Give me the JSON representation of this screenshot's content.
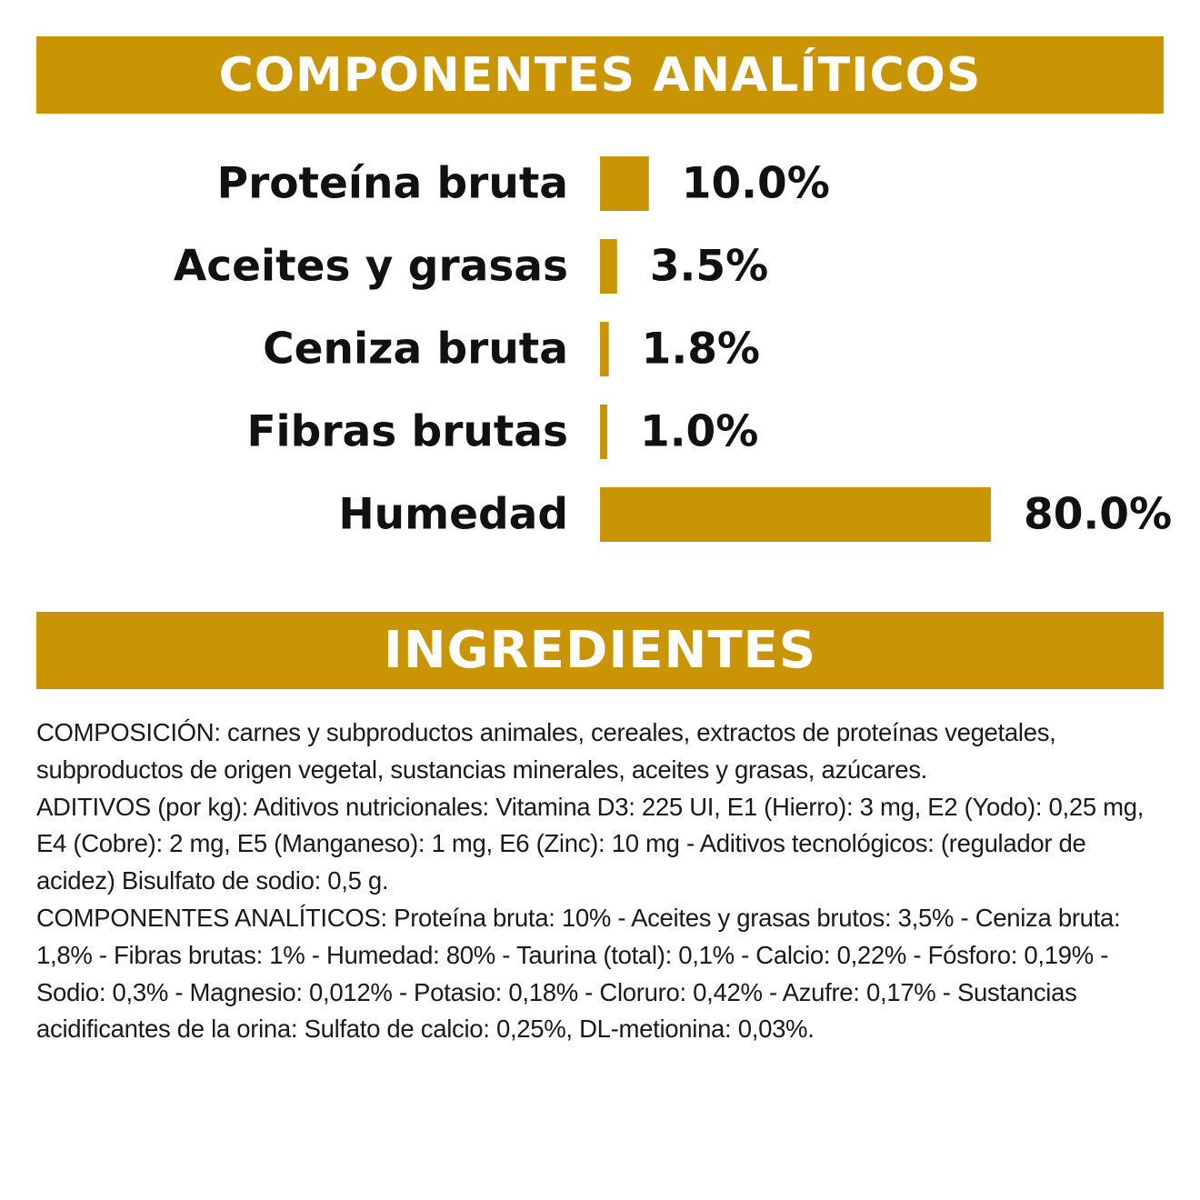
{
  "colors": {
    "accent": "#c99504",
    "text": "#111111",
    "background": "#ffffff"
  },
  "sections": {
    "analytics_title": "COMPONENTES ANALÍTICOS",
    "ingredients_title": "INGREDIENTES"
  },
  "chart_data": {
    "type": "bar",
    "orientation": "horizontal",
    "categories": [
      "Proteína bruta",
      "Aceites y grasas",
      "Ceniza bruta",
      "Fibras brutas",
      "Humedad"
    ],
    "values": [
      10.0,
      3.5,
      1.8,
      1.0,
      80.0
    ],
    "value_labels": [
      "10.0%",
      "3.5%",
      "1.8%",
      "1.0%",
      "80.0%"
    ],
    "unit": "%",
    "grid": false,
    "xlim": [
      0,
      80
    ]
  },
  "ingredients": {
    "paragraphs": [
      "COMPOSICIÓN: carnes y subproductos animales, cereales, extractos de proteínas vegetales, subproductos de origen vegetal, sustancias minerales, aceites y grasas, azúcares.",
      "ADITIVOS (por kg): Aditivos nutricionales: Vitamina D3: 225 UI, E1 (Hierro): 3 mg, E2 (Yodo): 0,25 mg, E4 (Cobre): 2 mg, E5 (Manganeso): 1 mg, E6 (Zinc): 10 mg - Aditivos tecnológicos: (regulador de acidez) Bisulfato de sodio: 0,5 g.",
      "COMPONENTES ANALÍTICOS: Proteína bruta: 10% - Aceites y grasas brutos: 3,5% - Ceniza bruta: 1,8% - Fibras brutas: 1% - Humedad: 80% - Taurina (total): 0,1% - Calcio: 0,22% - Fósforo: 0,19% - Sodio: 0,3% - Magnesio: 0,012% - Potasio: 0,18% - Cloruro: 0,42% - Azufre: 0,17% - Sustancias acidificantes de la orina: Sulfato de calcio: 0,25%, DL-metionina: 0,03%."
    ]
  }
}
